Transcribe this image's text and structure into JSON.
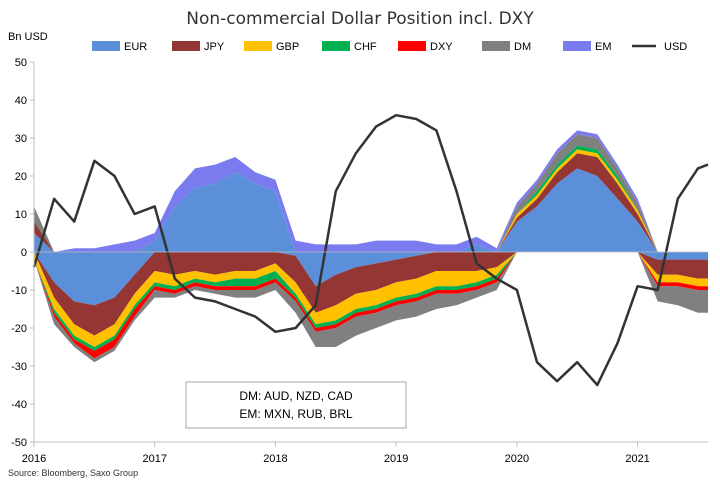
{
  "chart_data": {
    "type": "area",
    "title": "Non-commercial Dollar Position incl. DXY",
    "y_unit_label": "Bn USD",
    "source": "Source: Bloomberg, Saxo Group",
    "ylim": [
      -50,
      50
    ],
    "y_ticks": [
      50,
      40,
      30,
      20,
      10,
      0,
      -10,
      -20,
      -30,
      -40,
      -50
    ],
    "x_range": [
      "2016-01",
      "2021-08"
    ],
    "x_ticks": [
      "2016",
      "2017",
      "2018",
      "2019",
      "2020",
      "2021"
    ],
    "grid": false,
    "legend_position": "top",
    "annotation": [
      "DM: AUD, NZD, CAD",
      "EM: MXN, RUB, BRL"
    ],
    "series": [
      {
        "name": "EUR",
        "kind": "stacked-area",
        "color": "#5b8fd9"
      },
      {
        "name": "JPY",
        "kind": "stacked-area",
        "color": "#943634"
      },
      {
        "name": "GBP",
        "kind": "stacked-area",
        "color": "#ffc000"
      },
      {
        "name": "CHF",
        "kind": "stacked-area",
        "color": "#00b050"
      },
      {
        "name": "DXY",
        "kind": "stacked-area",
        "color": "#ff0000"
      },
      {
        "name": "DM",
        "kind": "stacked-area",
        "color": "#808080"
      },
      {
        "name": "EM",
        "kind": "stacked-area",
        "color": "#7b7bf0"
      },
      {
        "name": "USD",
        "kind": "line",
        "color": "#333333"
      }
    ],
    "x": [
      "2016-01",
      "2016-03",
      "2016-05",
      "2016-07",
      "2016-09",
      "2016-11",
      "2017-01",
      "2017-03",
      "2017-05",
      "2017-07",
      "2017-09",
      "2017-11",
      "2018-01",
      "2018-03",
      "2018-05",
      "2018-07",
      "2018-09",
      "2018-11",
      "2019-01",
      "2019-03",
      "2019-05",
      "2019-07",
      "2019-09",
      "2019-11",
      "2020-01",
      "2020-03",
      "2020-05",
      "2020-07",
      "2020-09",
      "2020-11",
      "2021-01",
      "2021-03",
      "2021-05",
      "2021-07",
      "2021-08"
    ],
    "values": {
      "EUR": [
        5,
        -8,
        -13,
        -14,
        -12,
        -6,
        3,
        12,
        17,
        18,
        21,
        18,
        16,
        -1,
        -9,
        -6,
        -4,
        -3,
        -2,
        -1,
        0,
        0,
        2,
        0,
        8,
        12,
        18,
        22,
        20,
        14,
        8,
        -2,
        -2,
        -2,
        -2
      ],
      "JPY": [
        3,
        -4,
        -6,
        -8,
        -7,
        -5,
        -5,
        -6,
        -5,
        -6,
        -5,
        -5,
        -3,
        -7,
        -7,
        -8,
        -7,
        -7,
        -6,
        -6,
        -5,
        -5,
        -5,
        -4,
        1,
        2,
        3,
        4,
        5,
        4,
        2,
        -4,
        -4,
        -5,
        -5
      ],
      "GBP": [
        -2,
        -3,
        -3,
        -3,
        -3,
        -3,
        -3,
        -3,
        -2,
        -2,
        -2,
        -2,
        -2,
        -3,
        -3,
        -4,
        -4,
        -4,
        -4,
        -4,
        -4,
        -4,
        -3,
        -2,
        1,
        1,
        1,
        1,
        1,
        1,
        1,
        -2,
        -2,
        -2,
        -2
      ],
      "CHF": [
        0,
        -1,
        -1,
        -1,
        -1,
        -1,
        -1,
        -1,
        -1,
        -1,
        -2,
        -2,
        -2,
        -1,
        -1,
        -1,
        -1,
        -1,
        -1,
        -1,
        -1,
        -1,
        -1,
        -1,
        0,
        1,
        1,
        1,
        1,
        1,
        0,
        0,
        0,
        0,
        0
      ],
      "DXY": [
        0,
        -1,
        -1,
        -2,
        -2,
        -2,
        -1,
        -1,
        -1,
        -1,
        -1,
        -1,
        -1,
        -1,
        -1,
        -1,
        -1,
        -1,
        -1,
        -1,
        -1,
        -1,
        -1,
        -1,
        0,
        0,
        0,
        0,
        0,
        0,
        0,
        -1,
        -1,
        -1,
        -1
      ],
      "DM": [
        4,
        -2,
        -1,
        -1,
        -1,
        -1,
        -2,
        -1,
        -1,
        -1,
        -2,
        -2,
        -2,
        -3,
        -4,
        -5,
        -5,
        -4,
        -4,
        -4,
        -4,
        -3,
        -2,
        -2,
        2,
        2,
        3,
        3,
        3,
        2,
        2,
        -4,
        -5,
        -6,
        -6
      ],
      "EM": [
        0,
        0,
        1,
        1,
        2,
        3,
        2,
        4,
        5,
        5,
        4,
        3,
        3,
        3,
        2,
        2,
        2,
        3,
        3,
        3,
        2,
        2,
        2,
        1,
        1,
        1,
        1,
        1,
        1,
        1,
        1,
        0,
        0,
        0,
        0
      ],
      "USD": [
        -4,
        14,
        8,
        24,
        20,
        10,
        12,
        -7,
        -12,
        -13,
        -15,
        -17,
        -21,
        -20,
        -14,
        16,
        26,
        33,
        36,
        35,
        32,
        16,
        -3,
        -7,
        -10,
        -29,
        -34,
        -29,
        -35,
        -24,
        -9,
        -10,
        14,
        22,
        23
      ]
    }
  }
}
